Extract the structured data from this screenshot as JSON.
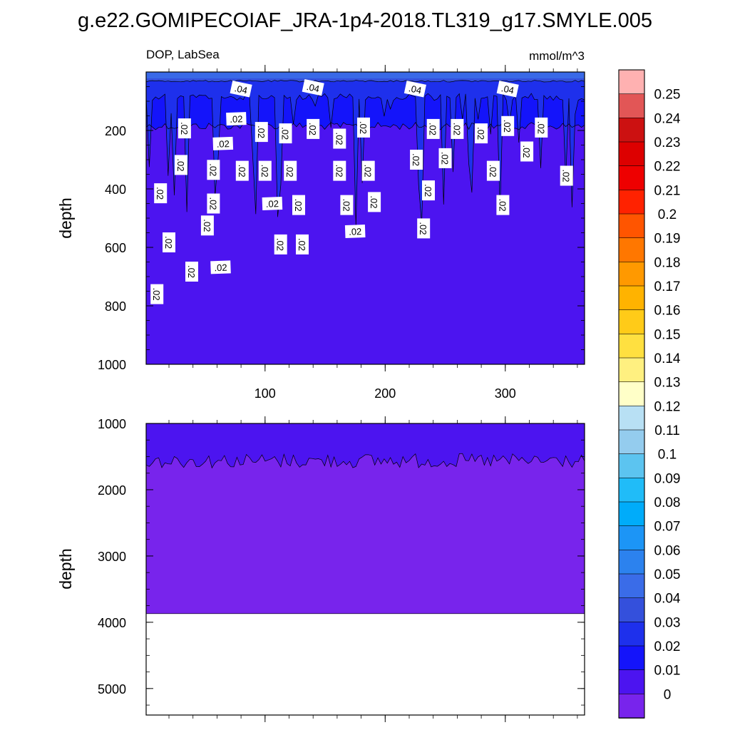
{
  "chart_data": {
    "type": "heatmap",
    "title": "g.e22.GOMIPECOIAF_JRA-1p4-2018.TL319_g17.SMYLE.005",
    "subtitle_left": "DOP, LabSea",
    "subtitle_right": "mmol/m^3",
    "colorbar": {
      "levels": [
        "0.25",
        "0.24",
        "0.23",
        "0.22",
        "0.21",
        "0.2",
        "0.19",
        "0.18",
        "0.17",
        "0.16",
        "0.15",
        "0.14",
        "0.13",
        "0.12",
        "0.11",
        "0.1",
        "0.09",
        "0.08",
        "0.07",
        "0.06",
        "0.05",
        "0.04",
        "0.03",
        "0.02",
        "0.01",
        "0"
      ],
      "colors": [
        "#FFB1B1",
        "#E25656",
        "#CC1111",
        "#DD0000",
        "#EE0000",
        "#FF2200",
        "#FF5500",
        "#FF7700",
        "#FF9900",
        "#FFB300",
        "#FFCB18",
        "#FFE040",
        "#FFF080",
        "#FFFFC8",
        "#B8E0F4",
        "#94CCEE",
        "#5CC4F0",
        "#20BCF8",
        "#00ACFA",
        "#1C95F6",
        "#2C82EE",
        "#3A6CE8",
        "#3450DC",
        "#1E30EC",
        "#1414FA",
        "#4C14F0",
        "#7824EC"
      ]
    },
    "panels": [
      {
        "name": "upper",
        "ylabel": "depth",
        "ylim": [
          1000,
          0
        ],
        "y_ticks": [
          "200",
          "400",
          "600",
          "800",
          "1000"
        ],
        "xlim": [
          1,
          366
        ],
        "x_ticks": [
          "100",
          "200",
          "300"
        ],
        "bands": [
          {
            "level_low": "0.04",
            "level_high": "0.05",
            "depth": 30
          },
          {
            "level_low": "0.03",
            "depth": 80
          },
          {
            "level_low": "0.02",
            "depth": 180
          },
          {
            "level_low": "0.01",
            "depth": 1000
          }
        ],
        "contour_labels": [
          {
            "text": ".04",
            "day": 80,
            "depth": 58
          },
          {
            "text": ".04",
            "day": 140,
            "depth": 53
          },
          {
            "text": ".04",
            "day": 225,
            "depth": 58
          },
          {
            "text": ".04",
            "day": 302,
            "depth": 58
          },
          {
            "text": ".02",
            "day": 76,
            "depth": 160
          },
          {
            "text": ".02",
            "day": 33,
            "depth": 193
          },
          {
            "text": ".02",
            "day": 65,
            "depth": 245
          },
          {
            "text": ".02",
            "day": 97,
            "depth": 205
          },
          {
            "text": ".02",
            "day": 117,
            "depth": 210
          },
          {
            "text": ".02",
            "day": 140,
            "depth": 195
          },
          {
            "text": ".02",
            "day": 162,
            "depth": 228
          },
          {
            "text": ".02",
            "day": 182,
            "depth": 190
          },
          {
            "text": ".02",
            "day": 226,
            "depth": 300
          },
          {
            "text": ".02",
            "day": 240,
            "depth": 195
          },
          {
            "text": ".02",
            "day": 260,
            "depth": 195
          },
          {
            "text": ".02",
            "day": 280,
            "depth": 210
          },
          {
            "text": ".02",
            "day": 302,
            "depth": 185
          },
          {
            "text": ".02",
            "day": 330,
            "depth": 190
          },
          {
            "text": ".02",
            "day": 318,
            "depth": 272
          },
          {
            "text": ".02",
            "day": 250,
            "depth": 295
          },
          {
            "text": ".02",
            "day": 30,
            "depth": 318
          },
          {
            "text": ".02",
            "day": 57,
            "depth": 335
          },
          {
            "text": ".02",
            "day": 81,
            "depth": 338
          },
          {
            "text": ".02",
            "day": 100,
            "depth": 338
          },
          {
            "text": ".02",
            "day": 121,
            "depth": 338
          },
          {
            "text": ".02",
            "day": 162,
            "depth": 338
          },
          {
            "text": ".02",
            "day": 186,
            "depth": 338
          },
          {
            "text": ".02",
            "day": 290,
            "depth": 338
          },
          {
            "text": ".02",
            "day": 351,
            "depth": 355
          },
          {
            "text": ".02",
            "day": 13,
            "depth": 415
          },
          {
            "text": ".02",
            "day": 236,
            "depth": 405
          },
          {
            "text": ".02",
            "day": 57,
            "depth": 450
          },
          {
            "text": ".02",
            "day": 106,
            "depth": 450
          },
          {
            "text": ".02",
            "day": 128,
            "depth": 455
          },
          {
            "text": ".02",
            "day": 168,
            "depth": 455
          },
          {
            "text": ".02",
            "day": 191,
            "depth": 445
          },
          {
            "text": ".02",
            "day": 298,
            "depth": 455
          },
          {
            "text": ".02",
            "day": 52,
            "depth": 525
          },
          {
            "text": ".02",
            "day": 20,
            "depth": 583
          },
          {
            "text": ".02",
            "day": 175,
            "depth": 545
          },
          {
            "text": ".02",
            "day": 232,
            "depth": 535
          },
          {
            "text": ".02",
            "day": 113,
            "depth": 590
          },
          {
            "text": ".02",
            "day": 131,
            "depth": 590
          },
          {
            "text": ".02",
            "day": 39,
            "depth": 683
          },
          {
            "text": ".02",
            "day": 63,
            "depth": 668
          },
          {
            "text": ".02",
            "day": 10,
            "depth": 760
          }
        ]
      },
      {
        "name": "lower",
        "ylabel": "depth",
        "ylim": [
          5400,
          1000
        ],
        "y_ticks": [
          "1000",
          "2000",
          "3000",
          "4000",
          "5000"
        ],
        "xlim": [
          1,
          366
        ],
        "bands": [
          {
            "level_low": "0.01",
            "depth": 1520
          },
          {
            "level_low": "0",
            "depth": 3870
          }
        ],
        "no_data_below_depth": 3870
      }
    ]
  }
}
